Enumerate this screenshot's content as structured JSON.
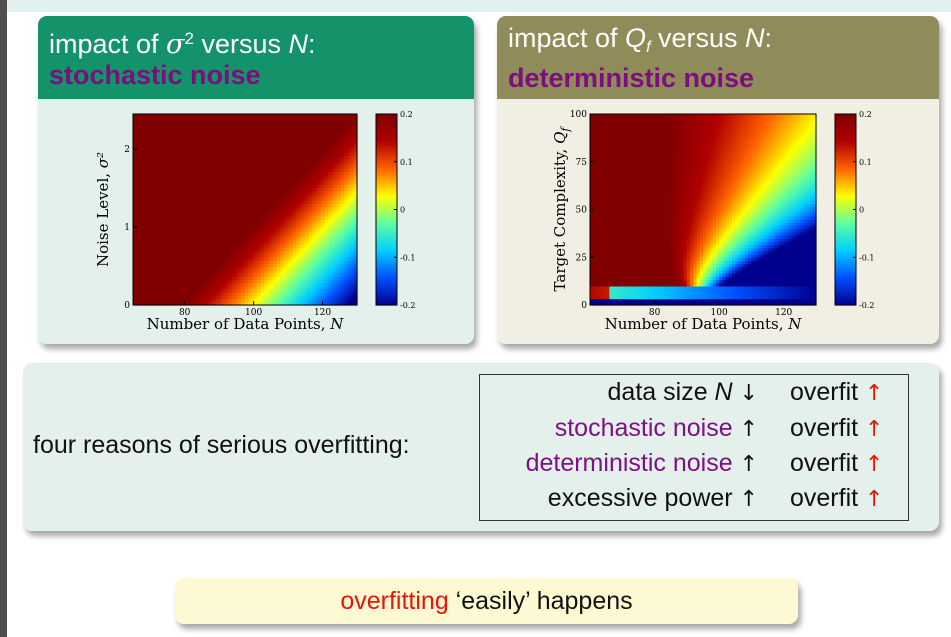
{
  "stochastic_panel": {
    "title_prefix": "impact of ",
    "title_symbol": "σ",
    "title_superscript": "2",
    "title_mid": " versus ",
    "title_var": "N",
    "title_suffix": ":",
    "highlight": "stochastic noise"
  },
  "deterministic_panel": {
    "title_prefix": "impact of ",
    "title_symbol": "Q",
    "title_subscript": "f",
    "title_mid": " versus ",
    "title_var": "N",
    "title_suffix": ":",
    "highlight": "deterministic noise"
  },
  "chart_data": [
    {
      "type": "heatmap",
      "xlabel": "Number of Data Points, N",
      "ylabel": "Noise Level, σ²",
      "x_ticks": [
        80,
        100,
        120
      ],
      "y_ticks": [
        0,
        1,
        2
      ],
      "xlim": [
        65,
        130
      ],
      "ylim": [
        0,
        2.45
      ],
      "colorbar_ticks": [
        "0.2",
        "0.1",
        "0",
        "-0.1",
        "-0.2"
      ],
      "colorbar_range": [
        -0.2,
        0.2
      ],
      "colormap": [
        "#00008f",
        "#0050ff",
        "#00d0ff",
        "#60ff9f",
        "#ffff00",
        "#ff6000",
        "#b00000",
        "#800000"
      ],
      "boundary_line": [
        [
          79,
          0
        ],
        [
          130,
          2.45
        ]
      ]
    },
    {
      "type": "heatmap",
      "xlabel": "Number of Data Points, N",
      "ylabel": "Target Complexity, Q",
      "ylabel_subscript": "f",
      "x_ticks": [
        80,
        100,
        120
      ],
      "y_ticks": [
        0,
        25,
        50,
        75,
        100
      ],
      "xlim": [
        60,
        130
      ],
      "ylim": [
        0,
        100
      ],
      "colorbar_ticks": [
        "0.2",
        "0.1",
        "0",
        "-0.1",
        "-0.2"
      ],
      "colorbar_range": [
        -0.2,
        0.2
      ],
      "colormap": [
        "#00008f",
        "#0050ff",
        "#00d0ff",
        "#60ff9f",
        "#ffff00",
        "#ff6000",
        "#b00000",
        "#800000"
      ]
    }
  ],
  "reasons": {
    "lead": "four reasons of serious overfitting:",
    "rows": [
      {
        "prefix": "data size ",
        "var": "N",
        "dir": "↓",
        "effect": "overfit",
        "effect_arrow": "↑",
        "color": "#111111"
      },
      {
        "prefix": "stochastic noise",
        "var": "",
        "dir": "↑",
        "effect": "overfit",
        "effect_arrow": "↑",
        "color": "#7f1083"
      },
      {
        "prefix": "deterministic noise",
        "var": "",
        "dir": "↑",
        "effect": "overfit",
        "effect_arrow": "↑",
        "color": "#7f1083"
      },
      {
        "prefix": "excessive power",
        "var": "",
        "dir": "↑",
        "effect": "overfit",
        "effect_arrow": "↑",
        "color": "#111111"
      }
    ]
  },
  "conclusion": {
    "highlight": "overfitting",
    "rest": " ‘easily’ happens"
  }
}
